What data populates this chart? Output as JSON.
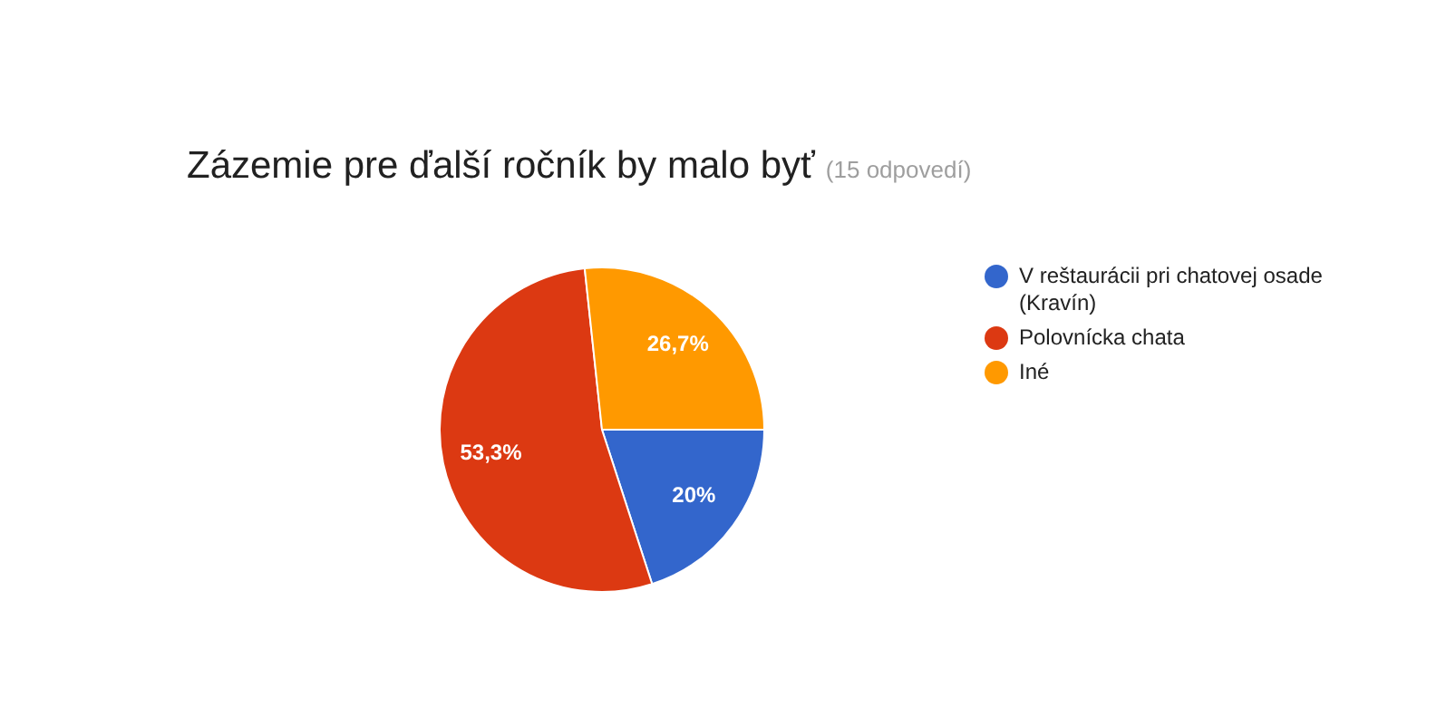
{
  "chart_data": {
    "type": "pie",
    "title": "Zázemie pre ďalší ročník by malo byť",
    "subtitle": "(15 odpovedí)",
    "categories": [
      "V reštaurácii pri chatovej osade (Kravín)",
      "Polovnícka chata",
      "Iné"
    ],
    "values": [
      20,
      53.3,
      26.7
    ],
    "colors": [
      "#3366cc",
      "#dc3912",
      "#ff9900"
    ],
    "value_labels": [
      "20%",
      "53,3%",
      "26,7%"
    ],
    "legend": "right"
  }
}
